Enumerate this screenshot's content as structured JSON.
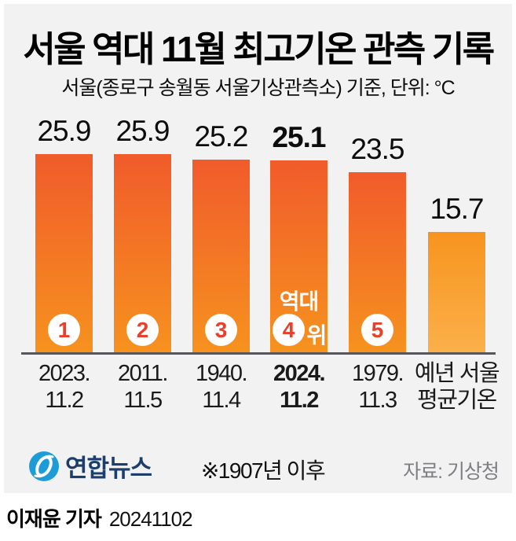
{
  "title": "서울 역대 11월 최고기온 관측 기록",
  "subtitle": "서울(종로구 송월동 서울기상관측소) 기준, 단위: °C",
  "chart_data": {
    "type": "bar",
    "title": "서울 역대 11월 최고기온 관측 기록",
    "unit": "°C",
    "values": [
      25.9,
      25.9,
      25.2,
      25.1,
      23.5,
      15.7
    ],
    "value_labels": [
      "25.9",
      "25.9",
      "25.2",
      "25.1",
      "23.5",
      "15.7"
    ],
    "categories": [
      [
        "2023.",
        "11.2"
      ],
      [
        "2011.",
        "11.5"
      ],
      [
        "1940.",
        "11.4"
      ],
      [
        "2024.",
        "11.2"
      ],
      [
        "1979.",
        "11.3"
      ],
      [
        "예년 서울",
        "평균기온"
      ]
    ],
    "ranks": [
      "1",
      "2",
      "3",
      "4",
      "5",
      null
    ],
    "rank_annotation": {
      "prefix": "역대",
      "suffix": "위",
      "bar_index": 3
    },
    "highlight_index": 3,
    "light_bar_index": 5,
    "ylim": [
      0,
      27
    ],
    "grid": false,
    "legend": "none",
    "colors": {
      "bar_gradient_top": "#f15b2b",
      "bar_gradient_bottom": "#f6921e",
      "light_bar_gradient_top": "#f7941e",
      "light_bar_gradient_bottom": "#fbb04a",
      "rank_number": "#e8402c",
      "axis_line": "#55575a",
      "panel_background": "#f2f2f3"
    }
  },
  "footer": {
    "logo_text": "연합뉴스",
    "logo_color": "#1e9cd8",
    "note": "※1907년 이후",
    "source": "자료: 기상청"
  },
  "byline": {
    "reporter": "이재윤 기자",
    "date": "20241102"
  }
}
